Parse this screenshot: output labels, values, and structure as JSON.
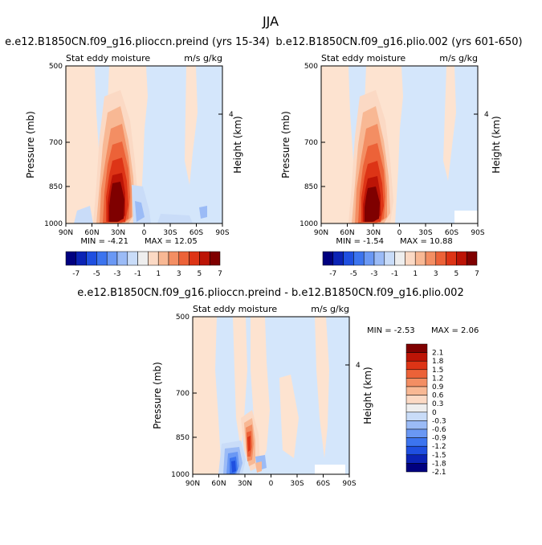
{
  "figure": {
    "title": "JJA",
    "shared_colorbar_ticks": [
      "-7",
      "-5",
      "-3",
      "-1",
      "1",
      "3",
      "5",
      "7"
    ]
  },
  "chart_data": [
    {
      "type": "heatmap",
      "title": "e.e12.B1850CN.f09_g16.plioccn.preind (yrs 15-34)",
      "left_label": "Stat eddy moisture",
      "right_label": "m/s g/kg",
      "xlabel": "",
      "ylabel": "Pressure (mb)",
      "ylabel_right": "Height (km)",
      "x_ticks": [
        "90N",
        "60N",
        "30N",
        "0",
        "30S",
        "60S",
        "90S"
      ],
      "y_ticks": [
        "500",
        "700",
        "850",
        "1000"
      ],
      "y_ticks_right": [
        "4"
      ],
      "xlim": [
        90,
        -90
      ],
      "ylim": [
        1000,
        500
      ],
      "min_label": "MIN = -4.21",
      "max_label": "MAX = 12.05",
      "min": -4.21,
      "max": 12.05,
      "colorbar_levels": [
        -7,
        -6,
        -5,
        -4,
        -3,
        -2,
        -1,
        0,
        1,
        2,
        3,
        4,
        5,
        6,
        7
      ]
    },
    {
      "type": "heatmap",
      "title": "b.e12.B1850CN.f09_g16.plio.002 (yrs 601-650)",
      "left_label": "Stat eddy moisture",
      "right_label": "m/s g/kg",
      "xlabel": "",
      "ylabel": "Pressure (mb)",
      "ylabel_right": "Height (km)",
      "x_ticks": [
        "90N",
        "60N",
        "30N",
        "0",
        "30S",
        "60S",
        "90S"
      ],
      "y_ticks": [
        "500",
        "700",
        "850",
        "1000"
      ],
      "y_ticks_right": [
        "4"
      ],
      "xlim": [
        90,
        -90
      ],
      "ylim": [
        1000,
        500
      ],
      "min_label": "MIN = -1.54",
      "max_label": "MAX = 10.88",
      "min": -1.54,
      "max": 10.88,
      "colorbar_levels": [
        -7,
        -6,
        -5,
        -4,
        -3,
        -2,
        -1,
        0,
        1,
        2,
        3,
        4,
        5,
        6,
        7
      ]
    },
    {
      "type": "heatmap",
      "title": "e.e12.B1850CN.f09_g16.plioccn.preind - b.e12.B1850CN.f09_g16.plio.002",
      "left_label": "Stat eddy moisture",
      "right_label": "m/s g/kg",
      "xlabel": "",
      "ylabel": "Pressure (mb)",
      "ylabel_right": "Height (km)",
      "x_ticks": [
        "90N",
        "60N",
        "30N",
        "0",
        "30S",
        "60S",
        "90S"
      ],
      "y_ticks": [
        "500",
        "700",
        "850",
        "1000"
      ],
      "y_ticks_right": [
        "4"
      ],
      "xlim": [
        90,
        -90
      ],
      "ylim": [
        1000,
        500
      ],
      "min_label": "MIN = -2.53",
      "max_label": "MAX = 2.06",
      "min": -2.53,
      "max": 2.06,
      "colorbar_labels": [
        "2.1",
        "1.8",
        "1.5",
        "1.2",
        "0.9",
        "0.6",
        "0.3",
        "0",
        "-0.3",
        "-0.6",
        "-0.9",
        "-1.2",
        "-1.5",
        "-1.8",
        "-2.1"
      ]
    }
  ],
  "palette": [
    "#00007f",
    "#0b23b5",
    "#1f4fe0",
    "#3c74ef",
    "#6a98f4",
    "#9bbbf6",
    "#c9dcf8",
    "#eeeeee",
    "#fbd9c4",
    "#f8b894",
    "#f38e63",
    "#ec6238",
    "#dd3416",
    "#bc1406",
    "#7f0000"
  ],
  "field_colors": {
    "bg_blue": "#d4e6fb",
    "light_orange": "#fde3d0"
  }
}
